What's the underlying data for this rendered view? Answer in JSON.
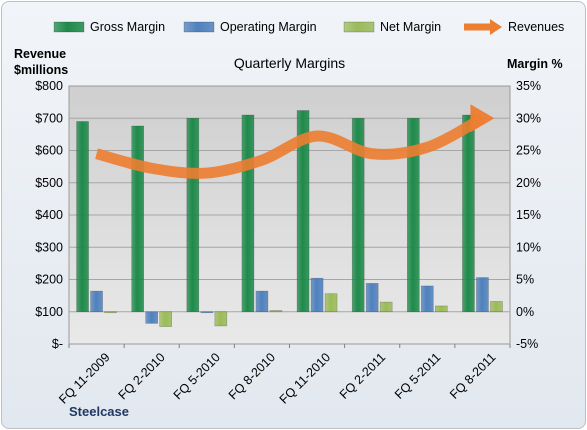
{
  "chart_data": {
    "type": "bar",
    "title": "Quarterly Margins",
    "left_axis_label": [
      "Revenue",
      "$millions"
    ],
    "right_axis_label": "Margin %",
    "company": "Steelcase",
    "categories": [
      "FQ 11-2009",
      "FQ 2-2010",
      "FQ 5-2010",
      "FQ 8-2010",
      "FQ 11-2010",
      "FQ 2-2011",
      "FQ 5-2011",
      "FQ 8-2011"
    ],
    "left_ticks": [
      "$-",
      "$100",
      "$200",
      "$300",
      "$400",
      "$500",
      "$600",
      "$700",
      "$800"
    ],
    "right_ticks": [
      "-5%",
      "0%",
      "5%",
      "10%",
      "15%",
      "20%",
      "25%",
      "30%",
      "35%"
    ],
    "ylim_right": [
      -5,
      35
    ],
    "ylim_left": [
      0,
      800
    ],
    "legend_position": "top",
    "series": [
      {
        "name": "Gross Margin",
        "axis": "right",
        "color": "#1e8a4a",
        "values": [
          29.5,
          28.8,
          30.0,
          30.5,
          31.2,
          30.0,
          30.0,
          30.5
        ]
      },
      {
        "name": "Operating Margin",
        "axis": "right",
        "color": "#4f81bd",
        "values": [
          3.2,
          -1.8,
          -0.1,
          3.2,
          5.2,
          4.4,
          4.0,
          5.3
        ]
      },
      {
        "name": "Net Margin",
        "axis": "right",
        "color": "#9bbb59",
        "values": [
          0.0,
          -2.3,
          -2.2,
          0.2,
          2.8,
          1.5,
          0.9,
          1.6
        ]
      },
      {
        "name": "Revenues",
        "axis": "left",
        "type": "line",
        "color": "#ed7d31",
        "values": [
          590,
          545,
          530,
          570,
          645,
          590,
          610,
          700
        ]
      }
    ]
  }
}
